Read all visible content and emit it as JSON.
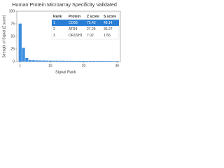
{
  "chart_data": {
    "type": "bar",
    "title": "Human Protein Microarray Specificity Validated",
    "x_label": "Signal Rank",
    "y_label": "Strength of Signal (Z score)",
    "x": [
      1,
      2,
      3,
      4,
      5,
      6,
      7,
      8,
      9,
      10,
      11,
      12,
      13,
      14,
      15,
      16,
      17,
      18,
      19,
      20,
      21,
      22,
      23,
      24,
      25,
      26,
      27,
      28,
      29,
      30
    ],
    "values": [
      75.43,
      27.29,
      7.02,
      3,
      2.6,
      2.4,
      2.2,
      2.1,
      2,
      1.9,
      1.8,
      1.8,
      1.7,
      1.7,
      1.6,
      1.6,
      1.5,
      1.5,
      1.5,
      1.4,
      1.4,
      1.4,
      1.3,
      1.3,
      1.3,
      1.2,
      1.2,
      1.2,
      1.1,
      1.1
    ],
    "color": "#3b8de0",
    "xlim": [
      0,
      31
    ],
    "xticks": [
      1,
      10,
      20,
      30
    ],
    "ylim": [
      0,
      100
    ],
    "yticks": [
      0,
      25,
      50,
      75,
      100
    ],
    "table": {
      "columns": [
        "Rank",
        "Protein",
        "Z score",
        "S score"
      ],
      "rows": [
        [
          "1",
          "CD68",
          "75.43",
          "48.14"
        ],
        [
          "2",
          "ATR4",
          "27.29",
          "36.27"
        ],
        [
          "3",
          "OR1SH1",
          "7.02",
          "1.56"
        ]
      ],
      "highlight_color": "#2a7fd4"
    }
  }
}
